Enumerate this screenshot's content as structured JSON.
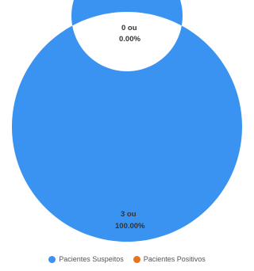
{
  "chart_data": {
    "type": "pie",
    "variant": "donut",
    "categories": [
      "Pacientes Suspeitos",
      "Pacientes Positivos"
    ],
    "values": [
      3,
      0
    ],
    "labels": [
      {
        "line1": "3 ou",
        "line2": "100.00%"
      },
      {
        "line1": "0 ou",
        "line2": "0.00%"
      }
    ],
    "colors": [
      "#3a93f0",
      "#e8731f"
    ],
    "legend_position": "bottom"
  }
}
